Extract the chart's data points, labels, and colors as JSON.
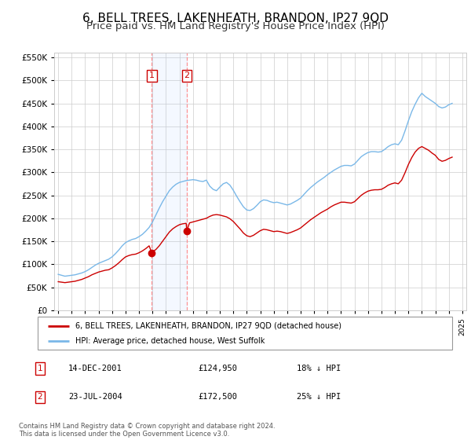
{
  "title": "6, BELL TREES, LAKENHEATH, BRANDON, IP27 9QD",
  "subtitle": "Price paid vs. HM Land Registry's House Price Index (HPI)",
  "title_fontsize": 11,
  "subtitle_fontsize": 9.5,
  "background_color": "#ffffff",
  "plot_bg_color": "#ffffff",
  "grid_color": "#cccccc",
  "hpi_color": "#7ab8e8",
  "price_color": "#cc0000",
  "ylim": [
    0,
    560000
  ],
  "yticks": [
    0,
    50000,
    100000,
    150000,
    200000,
    250000,
    300000,
    350000,
    400000,
    450000,
    500000,
    550000
  ],
  "sale1_date": 2001.95,
  "sale1_price": 124950,
  "sale2_date": 2004.55,
  "sale2_price": 172500,
  "legend_entries": [
    "6, BELL TREES, LAKENHEATH, BRANDON, IP27 9QD (detached house)",
    "HPI: Average price, detached house, West Suffolk"
  ],
  "table_rows": [
    [
      "1",
      "14-DEC-2001",
      "£124,950",
      "18% ↓ HPI"
    ],
    [
      "2",
      "23-JUL-2004",
      "£172,500",
      "25% ↓ HPI"
    ]
  ],
  "footer_text": "Contains HM Land Registry data © Crown copyright and database right 2024.\nThis data is licensed under the Open Government Licence v3.0.",
  "hpi_data": {
    "years": [
      1995.0,
      1995.25,
      1995.5,
      1995.75,
      1996.0,
      1996.25,
      1996.5,
      1996.75,
      1997.0,
      1997.25,
      1997.5,
      1997.75,
      1998.0,
      1998.25,
      1998.5,
      1998.75,
      1999.0,
      1999.25,
      1999.5,
      1999.75,
      2000.0,
      2000.25,
      2000.5,
      2000.75,
      2001.0,
      2001.25,
      2001.5,
      2001.75,
      2002.0,
      2002.25,
      2002.5,
      2002.75,
      2003.0,
      2003.25,
      2003.5,
      2003.75,
      2004.0,
      2004.25,
      2004.5,
      2004.75,
      2005.0,
      2005.25,
      2005.5,
      2005.75,
      2006.0,
      2006.25,
      2006.5,
      2006.75,
      2007.0,
      2007.25,
      2007.5,
      2007.75,
      2008.0,
      2008.25,
      2008.5,
      2008.75,
      2009.0,
      2009.25,
      2009.5,
      2009.75,
      2010.0,
      2010.25,
      2010.5,
      2010.75,
      2011.0,
      2011.25,
      2011.5,
      2011.75,
      2012.0,
      2012.25,
      2012.5,
      2012.75,
      2013.0,
      2013.25,
      2013.5,
      2013.75,
      2014.0,
      2014.25,
      2014.5,
      2014.75,
      2015.0,
      2015.25,
      2015.5,
      2015.75,
      2016.0,
      2016.25,
      2016.5,
      2016.75,
      2017.0,
      2017.25,
      2017.5,
      2017.75,
      2018.0,
      2018.25,
      2018.5,
      2018.75,
      2019.0,
      2019.25,
      2019.5,
      2019.75,
      2020.0,
      2020.25,
      2020.5,
      2020.75,
      2021.0,
      2021.25,
      2021.5,
      2021.75,
      2022.0,
      2022.25,
      2022.5,
      2022.75,
      2023.0,
      2023.25,
      2023.5,
      2023.75,
      2024.0,
      2024.25
    ],
    "values": [
      78000,
      76000,
      74000,
      75000,
      76000,
      77000,
      79000,
      81000,
      84000,
      88000,
      93000,
      98000,
      102000,
      105000,
      108000,
      111000,
      116000,
      123000,
      131000,
      140000,
      147000,
      151000,
      154000,
      156000,
      160000,
      165000,
      172000,
      180000,
      192000,
      207000,
      222000,
      236000,
      248000,
      260000,
      268000,
      274000,
      278000,
      280000,
      282000,
      283000,
      284000,
      283000,
      281000,
      280000,
      283000,
      270000,
      263000,
      260000,
      268000,
      275000,
      278000,
      272000,
      261000,
      248000,
      236000,
      225000,
      218000,
      217000,
      221000,
      228000,
      236000,
      240000,
      239000,
      236000,
      234000,
      235000,
      233000,
      231000,
      229000,
      231000,
      235000,
      239000,
      244000,
      252000,
      260000,
      267000,
      273000,
      279000,
      284000,
      289000,
      295000,
      300000,
      305000,
      309000,
      313000,
      315000,
      315000,
      314000,
      318000,
      326000,
      334000,
      339000,
      343000,
      345000,
      345000,
      344000,
      345000,
      350000,
      356000,
      360000,
      362000,
      360000,
      370000,
      390000,
      412000,
      432000,
      448000,
      462000,
      472000,
      465000,
      460000,
      455000,
      450000,
      443000,
      440000,
      442000,
      447000,
      450000
    ]
  },
  "price_data": {
    "years": [
      1995.0,
      1995.25,
      1995.5,
      1995.75,
      1996.0,
      1996.25,
      1996.5,
      1996.75,
      1997.0,
      1997.25,
      1997.5,
      1997.75,
      1998.0,
      1998.25,
      1998.5,
      1998.75,
      1999.0,
      1999.25,
      1999.5,
      1999.75,
      2000.0,
      2000.25,
      2000.5,
      2000.75,
      2001.0,
      2001.25,
      2001.5,
      2001.75,
      2001.95,
      2002.0,
      2002.25,
      2002.5,
      2002.75,
      2003.0,
      2003.25,
      2003.5,
      2003.75,
      2004.0,
      2004.25,
      2004.5,
      2004.55,
      2004.75,
      2005.0,
      2005.25,
      2005.5,
      2005.75,
      2006.0,
      2006.25,
      2006.5,
      2006.75,
      2007.0,
      2007.25,
      2007.5,
      2007.75,
      2008.0,
      2008.25,
      2008.5,
      2008.75,
      2009.0,
      2009.25,
      2009.5,
      2009.75,
      2010.0,
      2010.25,
      2010.5,
      2010.75,
      2011.0,
      2011.25,
      2011.5,
      2011.75,
      2012.0,
      2012.25,
      2012.5,
      2012.75,
      2013.0,
      2013.25,
      2013.5,
      2013.75,
      2014.0,
      2014.25,
      2014.5,
      2014.75,
      2015.0,
      2015.25,
      2015.5,
      2015.75,
      2016.0,
      2016.25,
      2016.5,
      2016.75,
      2017.0,
      2017.25,
      2017.5,
      2017.75,
      2018.0,
      2018.25,
      2018.5,
      2018.75,
      2019.0,
      2019.25,
      2019.5,
      2019.75,
      2020.0,
      2020.25,
      2020.5,
      2020.75,
      2021.0,
      2021.25,
      2021.5,
      2021.75,
      2022.0,
      2022.25,
      2022.5,
      2022.75,
      2023.0,
      2023.25,
      2023.5,
      2023.75,
      2024.0,
      2024.25
    ],
    "values": [
      62000,
      61000,
      60000,
      61000,
      62000,
      63000,
      65000,
      67000,
      70000,
      73000,
      77000,
      80000,
      83000,
      85000,
      87000,
      88000,
      92000,
      97000,
      103000,
      110000,
      116000,
      119000,
      121000,
      122000,
      125000,
      129000,
      134000,
      140000,
      124950,
      127000,
      132000,
      140000,
      150000,
      160000,
      170000,
      177000,
      182000,
      186000,
      188000,
      189000,
      172500,
      190000,
      192000,
      194000,
      196000,
      198000,
      200000,
      204000,
      207000,
      208000,
      207000,
      205000,
      203000,
      199000,
      193000,
      185000,
      177000,
      168000,
      162000,
      160000,
      163000,
      168000,
      173000,
      176000,
      175000,
      173000,
      171000,
      172000,
      171000,
      169000,
      167000,
      169000,
      172000,
      175000,
      179000,
      185000,
      191000,
      197000,
      202000,
      207000,
      212000,
      216000,
      220000,
      225000,
      229000,
      232000,
      235000,
      235000,
      234000,
      233000,
      236000,
      243000,
      250000,
      255000,
      259000,
      261000,
      262000,
      262000,
      263000,
      267000,
      272000,
      275000,
      277000,
      275000,
      283000,
      299000,
      317000,
      332000,
      344000,
      352000,
      356000,
      352000,
      348000,
      342000,
      337000,
      328000,
      324000,
      326000,
      330000,
      333000
    ]
  }
}
